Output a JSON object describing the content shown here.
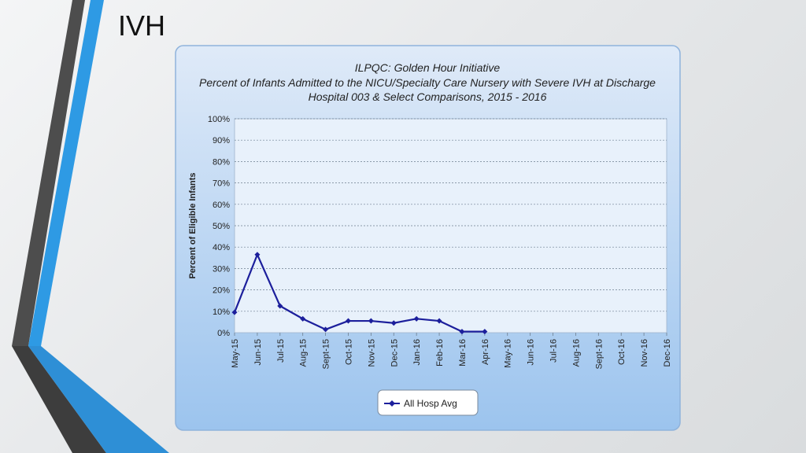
{
  "slide": {
    "title": "IVH"
  },
  "colors": {
    "accent_blue": "#2e9ae4",
    "stripe_dark": "#4a4a4a",
    "panel": "#cde0f6",
    "plot_bg": "#e8f1fb",
    "series": "#1c1f9c"
  },
  "chart_data": {
    "type": "line",
    "title": "ILPQC: Golden Hour Initiative",
    "subtitle": "Percent of Infants Admitted to the NICU/Specialty Care Nursery with Severe IVH at Discharge",
    "subtitle2": "Hospital 003 & Select Comparisons, 2015 - 2016",
    "ylabel": "Percent of Eligible Infants",
    "xlabel": "",
    "ylim": [
      0,
      100
    ],
    "yticks": [
      "0%",
      "10%",
      "20%",
      "30%",
      "40%",
      "50%",
      "60%",
      "70%",
      "80%",
      "90%",
      "100%"
    ],
    "categories": [
      "May-15",
      "Jun-15",
      "Jul-15",
      "Aug-15",
      "Sept-15",
      "Oct-15",
      "Nov-15",
      "Dec-15",
      "Jan-16",
      "Feb-16",
      "Mar-16",
      "Apr-16",
      "May-16",
      "Jun-16",
      "Jul-16",
      "Aug-16",
      "Sept-16",
      "Oct-16",
      "Nov-16",
      "Dec-16"
    ],
    "grid": true,
    "legend": "bottom",
    "series": [
      {
        "name": "All Hosp Avg",
        "values": [
          9.5,
          36.5,
          12.5,
          6.5,
          1.5,
          5.5,
          5.5,
          4.5,
          6.5,
          5.5,
          0.5,
          0.5,
          null,
          null,
          null,
          null,
          null,
          null,
          null,
          null
        ]
      }
    ]
  }
}
